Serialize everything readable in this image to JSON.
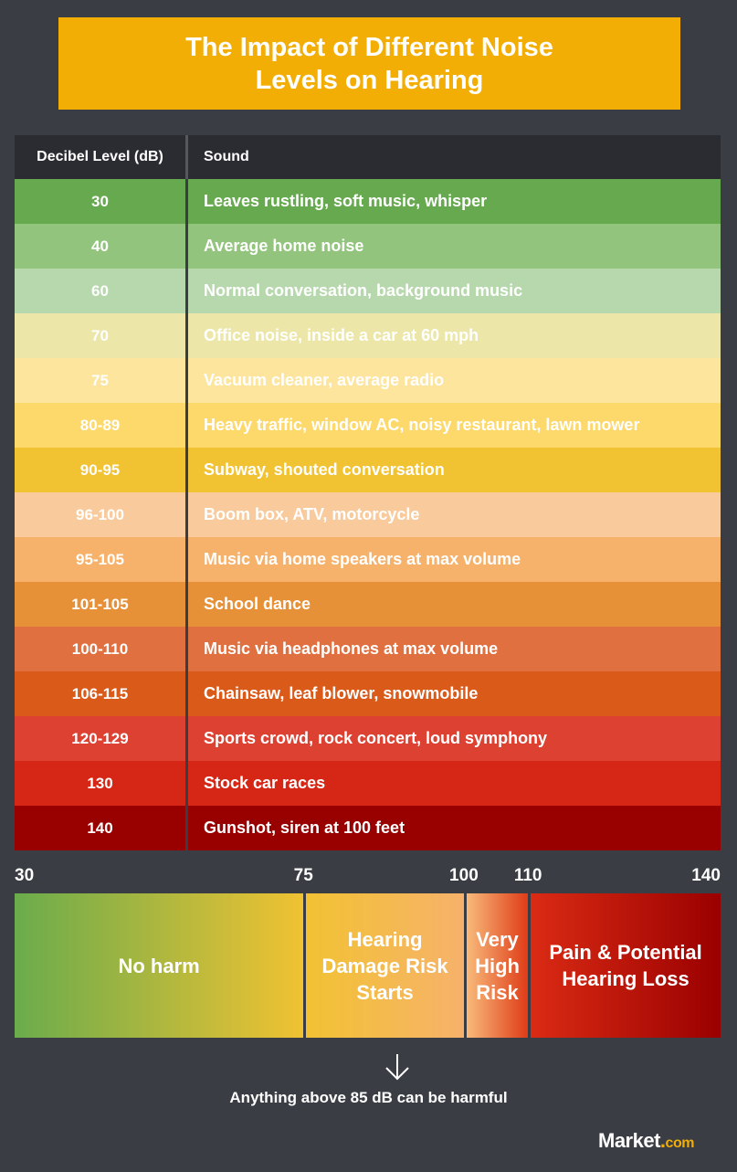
{
  "title": "The Impact of Different Noise Levels on Hearing",
  "chart_data": {
    "type": "table",
    "columns": [
      "Decibel Level (dB)",
      "Sound"
    ],
    "rows": [
      {
        "db": "30",
        "sound": "Leaves rustling, soft music, whisper",
        "bg": "#67a94f",
        "text": "#ffffff"
      },
      {
        "db": "40",
        "sound": "Average home noise",
        "bg": "#92c47d",
        "text": "#ffffff"
      },
      {
        "db": "60",
        "sound": "Normal conversation, background music",
        "bg": "#b7d8ad",
        "text": "#ffffff"
      },
      {
        "db": "70",
        "sound": "Office noise, inside a car at 60 mph",
        "bg": "#ece7a8",
        "text": "#ffffff"
      },
      {
        "db": "75",
        "sound": "Vacuum cleaner, average radio",
        "bg": "#fde59e",
        "text": "#ffffff"
      },
      {
        "db": "80-89",
        "sound": "Heavy traffic, window AC, noisy restaurant, lawn mower",
        "bg": "#fdd86a",
        "text": "#ffffff"
      },
      {
        "db": "90-95",
        "sound": "Subway, shouted conversation",
        "bg": "#f1c232",
        "text": "#ffffff"
      },
      {
        "db": "96-100",
        "sound": "Boom box, ATV, motorcycle",
        "bg": "#f9cb9c",
        "text": "#ffffff"
      },
      {
        "db": "95-105",
        "sound": "Music via home speakers at max volume",
        "bg": "#f6b26b",
        "text": "#ffffff"
      },
      {
        "db": "101-105",
        "sound": "School dance",
        "bg": "#e69138",
        "text": "#ffffff"
      },
      {
        "db": "100-110",
        "sound": "Music via headphones at max volume",
        "bg": "#e07040",
        "text": "#ffffff"
      },
      {
        "db": "106-115",
        "sound": "Chainsaw, leaf blower, snowmobile",
        "bg": "#da5a1a",
        "text": "#ffffff"
      },
      {
        "db": "120-129",
        "sound": "Sports crowd, rock concert, loud symphony",
        "bg": "#dc4132",
        "text": "#ffffff"
      },
      {
        "db": "130",
        "sound": "Stock car races",
        "bg": "#d62716",
        "text": "#ffffff"
      },
      {
        "db": "140",
        "sound": "Gunshot, siren at 100 feet",
        "bg": "#990000",
        "text": "#ffffff"
      }
    ],
    "scale": {
      "ticks": [
        30,
        75,
        100,
        110,
        140
      ],
      "range": [
        30,
        140
      ],
      "segments": [
        {
          "from": 30,
          "to": 75,
          "label": "No harm",
          "gradient": [
            "#6aac4c",
            "#f0c232"
          ]
        },
        {
          "from": 75,
          "to": 100,
          "label": "Hearing Damage Risk Starts",
          "gradient": [
            "#f2c233",
            "#f6b26b"
          ]
        },
        {
          "from": 100,
          "to": 110,
          "label": "Very High Risk",
          "gradient": [
            "#f8ba7a",
            "#df3c18"
          ]
        },
        {
          "from": 110,
          "to": 140,
          "label": "Pain & Potential Hearing Loss",
          "gradient": [
            "#da2b14",
            "#9a0000"
          ]
        }
      ]
    }
  },
  "note": "Anything above 85 dB can be harmful",
  "logo": {
    "word": "Market",
    "dot": ".",
    "suffix": "com"
  },
  "colors": {
    "background": "#3a3d44",
    "accent": "#f2ae05",
    "header": "#2b2c31"
  }
}
